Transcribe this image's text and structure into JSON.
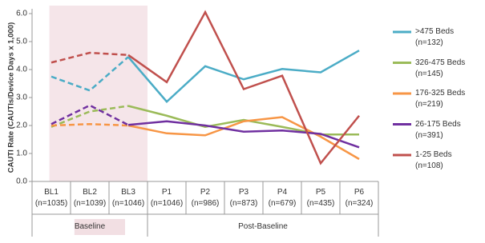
{
  "chart_data": {
    "type": "line",
    "y_label": "CAUTI Rate (CAUTIs/Device Days x 1,000)",
    "categories": [
      "BL1\n(n=1035)",
      "BL2\n(n=1039)",
      "BL3\n(n=1046)",
      "P1\n(n=1046)",
      "P2\n(n=986)",
      "P3\n(n=873)",
      "P4\n(n=679)",
      "P5\n(n=435)",
      "P6\n(n=324)"
    ],
    "x_groups": [
      "Baseline",
      "Post-Baseline"
    ],
    "ylim": [
      0,
      6
    ],
    "yticks": [
      {
        "value": 0,
        "label": "0.0"
      },
      {
        "value": 1,
        "label": "1.0"
      },
      {
        "value": 2,
        "label": "2.0"
      },
      {
        "value": 3,
        "label": "3.0"
      },
      {
        "value": 4,
        "label": "4.0"
      },
      {
        "value": 5,
        "label": "5.0"
      },
      {
        "value": 6,
        "label": "6.0"
      }
    ],
    "grid": false,
    "legend": "right",
    "series": [
      {
        "name": ">475  Beds\n(n=132)",
        "color": "#4bacc6",
        "values": [
          3.75,
          3.25,
          4.45,
          2.85,
          4.12,
          3.65,
          4.02,
          3.9,
          4.68
        ]
      },
      {
        "name": "326-475  Beds\n(n=145)",
        "color": "#9bbb59",
        "values": [
          1.95,
          2.5,
          2.7,
          2.35,
          1.95,
          2.2,
          1.95,
          1.68,
          1.68
        ]
      },
      {
        "name": "176-325  Beds\n(n=219)",
        "color": "#f79646",
        "values": [
          2.0,
          2.05,
          2.0,
          1.72,
          1.65,
          2.15,
          2.3,
          1.6,
          0.8
        ]
      },
      {
        "name": "26-175  Beds\n(n=391)",
        "color": "#7030a0",
        "values": [
          2.05,
          2.72,
          2.02,
          2.15,
          2.0,
          1.78,
          1.82,
          1.7,
          1.22
        ]
      },
      {
        "name": "1-25 Beds\n(n=108)",
        "color": "#c0504d",
        "values": [
          4.25,
          4.6,
          4.52,
          3.55,
          6.05,
          3.3,
          3.78,
          0.65,
          2.35
        ]
      }
    ]
  }
}
